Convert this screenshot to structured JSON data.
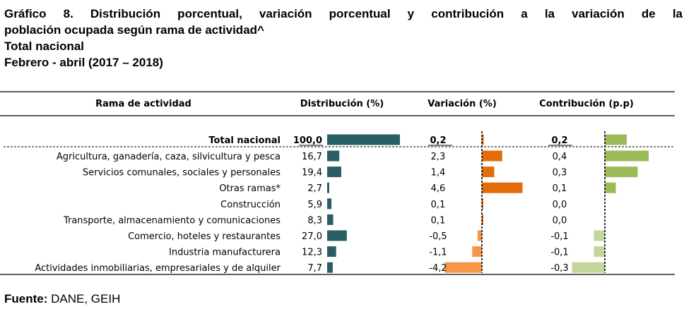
{
  "title": {
    "line1": "Gráfico 8. Distribución porcentual, variación porcentual y contribución a la variación de la",
    "line2": "población ocupada según rama de actividad^",
    "line3": "Total nacional",
    "line4": "Febrero - abril (2017 – 2018)"
  },
  "source": {
    "label": "Fuente:",
    "text": " DANE, GEIH"
  },
  "colors": {
    "distribucion": "#2a5e66",
    "variacion_pos": "#e36c0a",
    "variacion_neg": "#f79646",
    "contribucion_pos": "#9bbb59",
    "contribucion_neg": "#c3d69b"
  },
  "chart_data": {
    "type": "table",
    "columns": [
      "Rama de actividad",
      "Distribución (%)",
      "Variación (%)",
      "Contribución (p.p)"
    ],
    "total": {
      "label": "Total nacional",
      "distribucion": "100,0",
      "variacion": "0,2",
      "contribucion": "0,2",
      "dist_value": 100.0,
      "var_value": 0.2,
      "contrib_value": 0.2
    },
    "rows": [
      {
        "label": "Agricultura, ganadería, caza, silvicultura y pesca",
        "distribucion": "16,7",
        "variacion": "2,3",
        "contribucion": "0,4",
        "dist_value": 16.7,
        "var_value": 2.3,
        "contrib_value": 0.4
      },
      {
        "label": "Servicios comunales, sociales y personales",
        "distribucion": "19,4",
        "variacion": "1,4",
        "contribucion": "0,3",
        "dist_value": 19.4,
        "var_value": 1.4,
        "contrib_value": 0.3
      },
      {
        "label": "Otras ramas*",
        "distribucion": "2,7",
        "variacion": "4,6",
        "contribucion": "0,1",
        "dist_value": 2.7,
        "var_value": 4.6,
        "contrib_value": 0.1
      },
      {
        "label": "Construcción",
        "distribucion": "5,9",
        "variacion": "0,1",
        "contribucion": "0,0",
        "dist_value": 5.9,
        "var_value": 0.1,
        "contrib_value": 0.0
      },
      {
        "label": "Transporte, almacenamiento y comunicaciones",
        "distribucion": "8,3",
        "variacion": "0,1",
        "contribucion": "0,0",
        "dist_value": 8.3,
        "var_value": 0.1,
        "contrib_value": 0.0
      },
      {
        "label": "Comercio, hoteles y restaurantes",
        "distribucion": "27,0",
        "variacion": "-0,5",
        "contribucion": "-0,1",
        "dist_value": 27.0,
        "var_value": -0.5,
        "contrib_value": -0.1
      },
      {
        "label": "Industria manufacturera",
        "distribucion": "12,3",
        "variacion": "-1,1",
        "contribucion": "-0,1",
        "dist_value": 12.3,
        "var_value": -1.1,
        "contrib_value": -0.1
      },
      {
        "label": "Actividades inmobiliarias, empresariales y de alquiler",
        "distribucion": "7,7",
        "variacion": "-4,2",
        "contribucion": "-0,3",
        "dist_value": 7.7,
        "var_value": -4.2,
        "contrib_value": -0.3
      }
    ]
  }
}
